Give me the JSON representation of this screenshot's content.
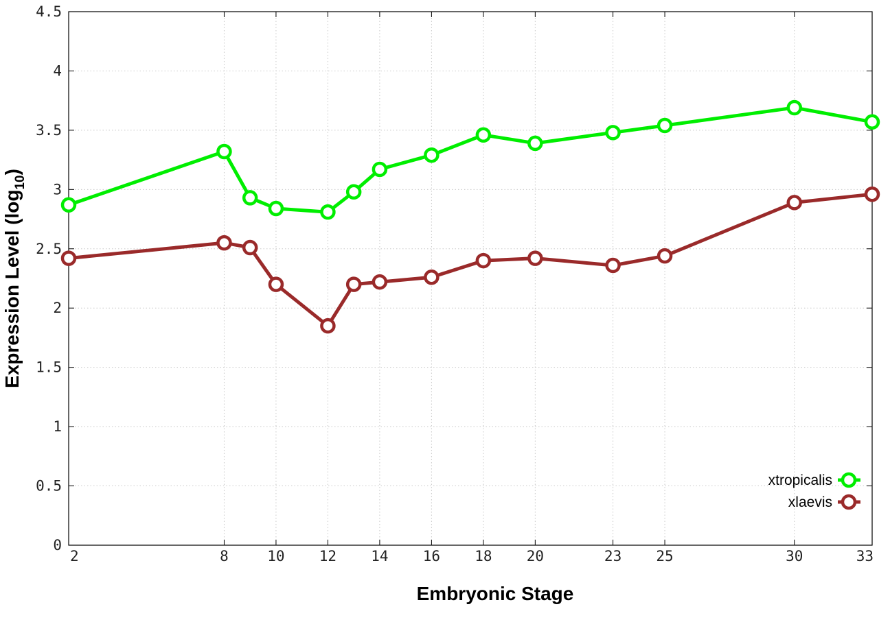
{
  "chart_data": {
    "type": "line",
    "xlabel": "Embryonic Stage",
    "ylabel_main": "Expression Level (log",
    "ylabel_sub": "10",
    "ylabel_close": ")",
    "xlim": [
      2,
      33
    ],
    "ylim": [
      0,
      4.5
    ],
    "x_ticks": [
      2,
      8,
      10,
      12,
      14,
      16,
      18,
      20,
      23,
      25,
      30,
      33
    ],
    "y_ticks": [
      0,
      0.5,
      1,
      1.5,
      2,
      2.5,
      3,
      3.5,
      4,
      4.5
    ],
    "y_tick_labels": [
      "0",
      "0.5",
      "1",
      "1.5",
      "2",
      "2.5",
      "3",
      "3.5",
      "4",
      "4.5"
    ],
    "grid": true,
    "legend_position": "bottom-right",
    "x": [
      2,
      8,
      9,
      10,
      12,
      13,
      14,
      16,
      18,
      20,
      23,
      25,
      30,
      33
    ],
    "series": [
      {
        "name": "xtropicalis",
        "color": "#00ee00",
        "values": [
          2.87,
          3.32,
          2.93,
          2.84,
          2.81,
          2.98,
          3.17,
          3.29,
          3.46,
          3.39,
          3.48,
          3.54,
          3.69,
          3.57
        ]
      },
      {
        "name": "xlaevis",
        "color": "#9a2a2a",
        "values": [
          2.42,
          2.55,
          2.51,
          2.2,
          1.85,
          2.2,
          2.22,
          2.26,
          2.4,
          2.42,
          2.36,
          2.44,
          2.89,
          2.96
        ]
      }
    ]
  }
}
